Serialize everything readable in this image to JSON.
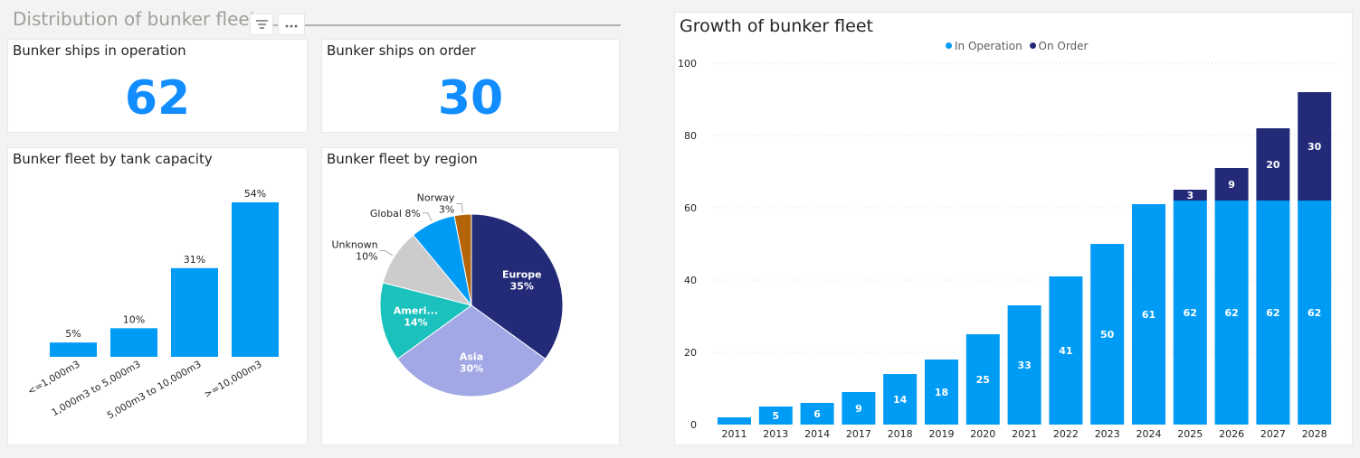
{
  "dashboard": {
    "section_title": "Distribution of bunker fleet"
  },
  "kpis": [
    {
      "label": "Bunker ships in operation",
      "value": "62"
    },
    {
      "label": "Bunker ships on order",
      "value": "30"
    }
  ],
  "colors": {
    "in_operation": "#009bf5",
    "on_order": "#232b79",
    "kpi": "#118dff"
  },
  "icons": [
    "filter-icon",
    "more-options-icon"
  ],
  "chart_data": [
    {
      "type": "bar",
      "title": "Bunker fleet by tank capacity",
      "categories": [
        "<=1,000m3",
        "1,000m3 to 5,000m3",
        "5,000m3 to 10,000m3",
        ">=10,000m3"
      ],
      "values": [
        5,
        10,
        31,
        54
      ],
      "value_labels": [
        "5%",
        "10%",
        "31%",
        "54%"
      ],
      "color": "#009bf5"
    },
    {
      "type": "pie",
      "title": "Bunker fleet by region",
      "slices": [
        {
          "label": "Europe",
          "value": 35,
          "value_label": "35%",
          "color": "#232b79",
          "label_position": "inside",
          "label_color": "#ffffff"
        },
        {
          "label": "Asia",
          "value": 30,
          "value_label": "30%",
          "color": "#a2a8e6",
          "label_position": "inside",
          "label_color": "#ffffff"
        },
        {
          "label": "Ameri...",
          "value": 14,
          "value_label": "14%",
          "color": "#1ac1bd",
          "label_position": "inside",
          "label_color": "#ffffff"
        },
        {
          "label": "Unknown",
          "value": 10,
          "value_label": "10%",
          "color": "#cccccc",
          "label_position": "outside"
        },
        {
          "label": "Global",
          "value": 8,
          "value_label": "8%",
          "color": "#009bf5",
          "label_position": "outside"
        },
        {
          "label": "Norway",
          "value": 3,
          "value_label": "3%",
          "color": "#b56509",
          "label_position": "outside"
        }
      ]
    },
    {
      "type": "bar",
      "stacked": true,
      "title": "Growth of bunker fleet",
      "categories": [
        "2011",
        "2013",
        "2014",
        "2017",
        "2018",
        "2019",
        "2020",
        "2021",
        "2022",
        "2023",
        "2024",
        "2025",
        "2026",
        "2027",
        "2028"
      ],
      "series": [
        {
          "name": "In Operation",
          "color": "#009bf5",
          "values": [
            2,
            5,
            6,
            9,
            14,
            18,
            25,
            33,
            41,
            50,
            61,
            62,
            62,
            62,
            62
          ],
          "show_labels_from_index": 1
        },
        {
          "name": "On Order",
          "color": "#232b79",
          "values": [
            0,
            0,
            0,
            0,
            0,
            0,
            0,
            0,
            0,
            0,
            0,
            3,
            9,
            20,
            30
          ]
        }
      ],
      "ylim": [
        0,
        100
      ],
      "yticks": [
        0,
        20,
        40,
        60,
        80,
        100
      ],
      "legend_position": "top",
      "grid": true
    }
  ]
}
